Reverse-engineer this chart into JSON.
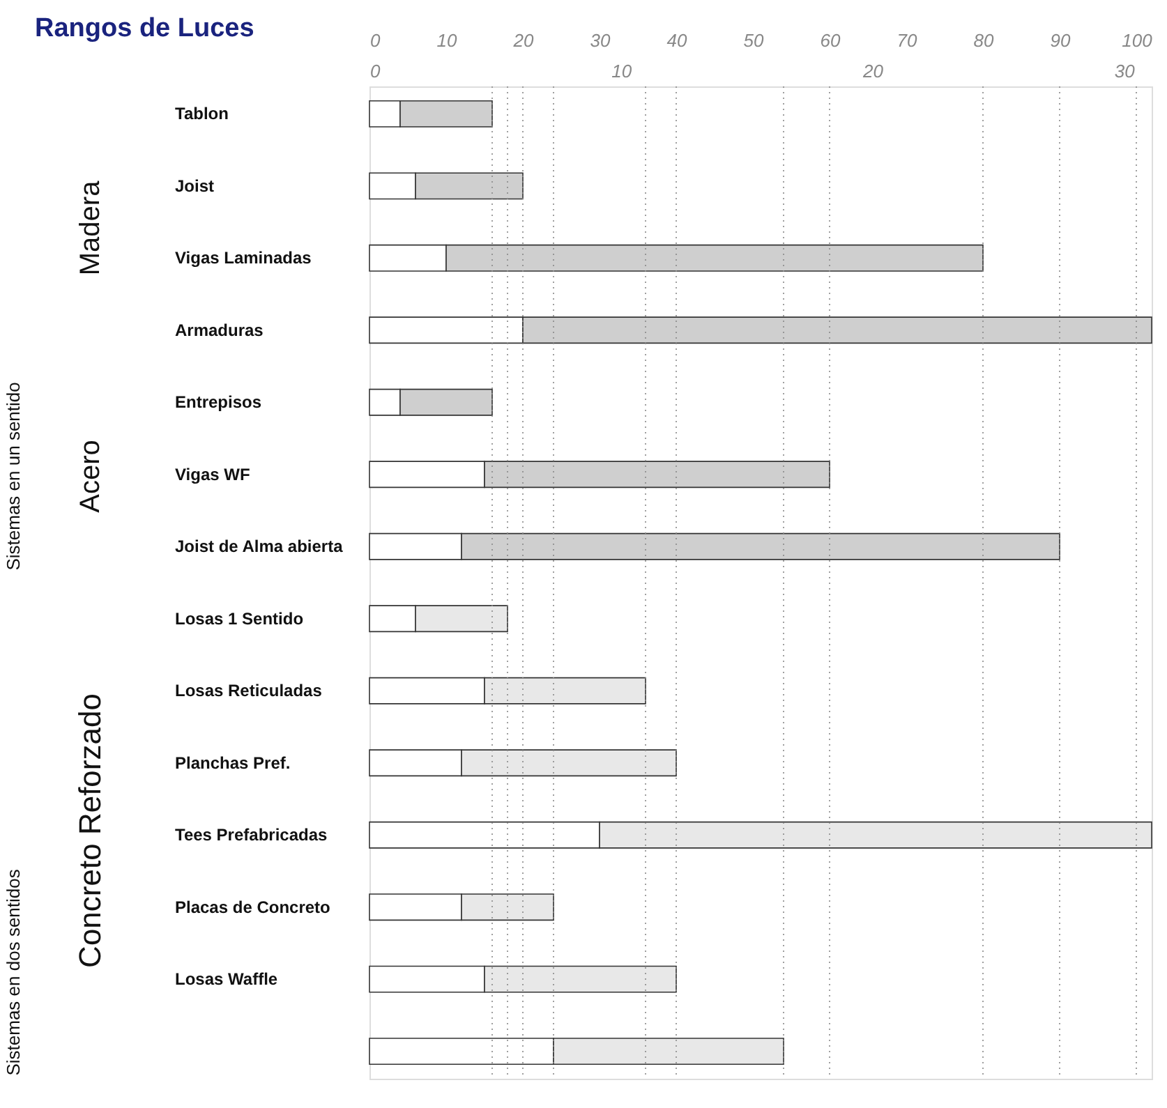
{
  "chart_data": {
    "type": "bar",
    "orientation": "horizontal",
    "stacked": true,
    "title": "Rangos de Luces",
    "categories": [
      "Tablon",
      "Joist",
      "Vigas Laminadas",
      "Armaduras",
      "Entrepisos",
      "Vigas WF",
      "Joist de Alma abierta",
      "Losas 1 Sentido",
      "Losas Reticuladas",
      "Planchas Pref.",
      "Tees Prefabricadas",
      "Placas de Concreto",
      "Losas Waffle",
      null
    ],
    "series": [
      {
        "color": "#ffffff",
        "values": [
          4,
          6,
          10,
          20,
          4,
          15,
          12,
          6,
          15,
          12,
          30,
          12,
          15,
          24
        ]
      },
      {
        "colors": [
          "#cfcfcf",
          "#cfcfcf",
          "#cfcfcf",
          "#cfcfcf",
          "#cfcfcf",
          "#cfcfcf",
          "#cfcfcf",
          "#e8e8e8",
          "#e8e8e8",
          "#e8e8e8",
          "#e8e8e8",
          "#e8e8e8",
          "#e8e8e8",
          "#e8e8e8"
        ],
        "values": [
          12,
          14,
          70,
          82,
          12,
          45,
          78,
          12,
          21,
          28,
          72,
          12,
          25,
          30
        ]
      }
    ],
    "xlim": [
      0,
      102
    ],
    "xticks": [
      0,
      10,
      20,
      30,
      40,
      50,
      60,
      70,
      80,
      90,
      100
    ],
    "x2lim": [
      0,
      31.1
    ],
    "x2ticks": [
      0,
      10,
      20,
      30
    ],
    "ref_lines": [
      {
        "axis": "x",
        "value": 16,
        "line_style": "dotted"
      },
      {
        "axis": "x",
        "value": 18,
        "line_style": "dotted"
      },
      {
        "axis": "x",
        "value": 20,
        "line_style": "dotted"
      },
      {
        "axis": "x",
        "value": 24,
        "line_style": "dotted"
      },
      {
        "axis": "x",
        "value": 36,
        "line_style": "dotted"
      },
      {
        "axis": "x",
        "value": 40,
        "line_style": "dotted"
      },
      {
        "axis": "x",
        "value": 54,
        "line_style": "dotted"
      },
      {
        "axis": "x",
        "value": 60,
        "line_style": "dotted"
      },
      {
        "axis": "x",
        "value": 80,
        "line_style": "dotted"
      },
      {
        "axis": "x",
        "value": 90,
        "line_style": "dotted"
      },
      {
        "axis": "x",
        "value": 100,
        "line_style": "dotted"
      }
    ],
    "annotations": [
      "Madera",
      "Acero",
      "Concreto Reforzado",
      "Sistemas en un sentido",
      "Sistemas en dos sentidos"
    ],
    "grid": false
  }
}
